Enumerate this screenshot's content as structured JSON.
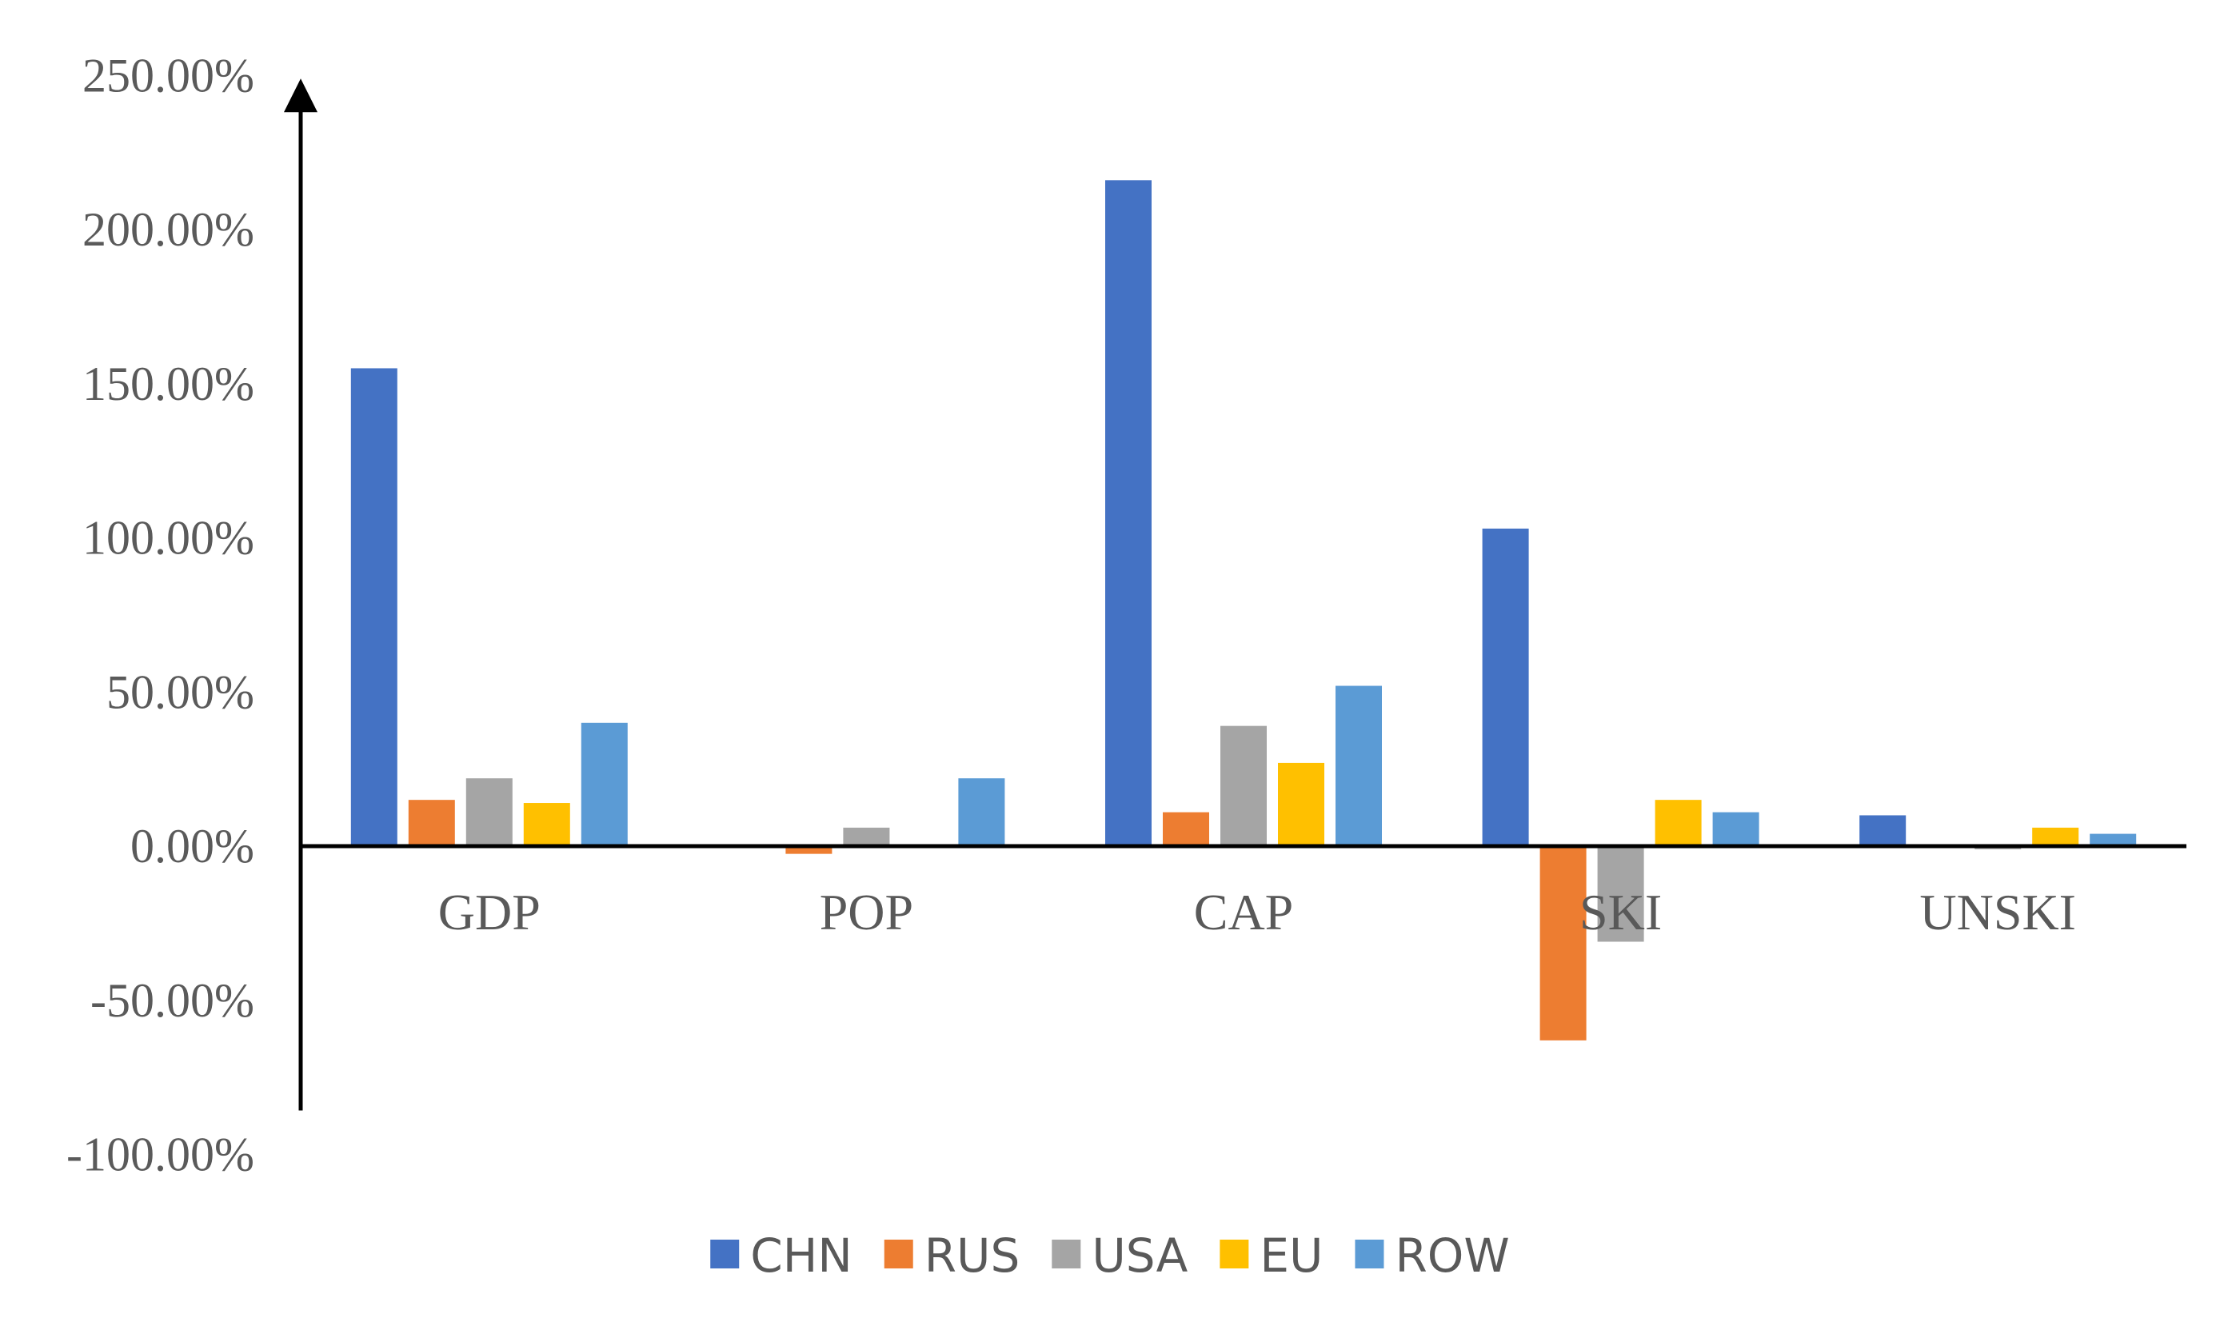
{
  "chart_data": {
    "type": "bar",
    "title": "",
    "xlabel": "",
    "ylabel": "",
    "categories": [
      "GDP",
      "POP",
      "CAP",
      "SKI",
      "UNSKI"
    ],
    "series": [
      {
        "name": "CHN",
        "color": "#4472C4",
        "values": [
          155,
          0,
          216,
          103,
          10
        ]
      },
      {
        "name": "RUS",
        "color": "#ED7D31",
        "values": [
          15,
          -2.5,
          11,
          -63,
          0
        ]
      },
      {
        "name": "USA",
        "color": "#A5A5A5",
        "values": [
          22,
          6,
          39,
          -31,
          -1
        ]
      },
      {
        "name": "EU",
        "color": "#FFC000",
        "values": [
          14,
          0,
          27,
          15,
          6
        ]
      },
      {
        "name": "ROW",
        "color": "#5B9BD5",
        "values": [
          40,
          22,
          52,
          11,
          4
        ]
      }
    ],
    "ylim": [
      -100,
      250
    ],
    "yticks": [
      250,
      200,
      150,
      100,
      50,
      0,
      -50,
      -100
    ],
    "ytick_labels": [
      "250.00%",
      "200.00%",
      "150.00%",
      "100.00%",
      "50.00%",
      "0.00%",
      "-50.00%",
      "-100.00%"
    ],
    "grid": false,
    "legend": "bottom"
  }
}
